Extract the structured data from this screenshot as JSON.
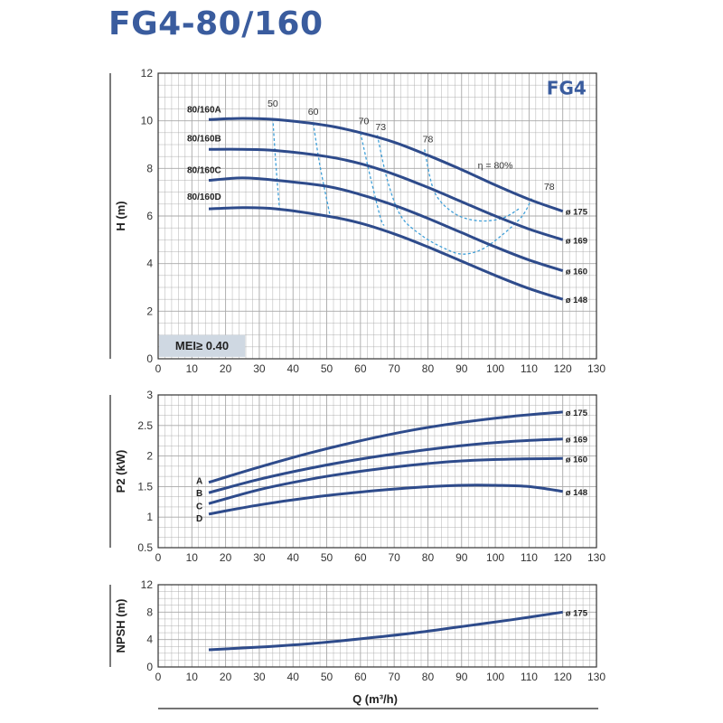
{
  "title": "FG4-80/160",
  "colors": {
    "title": "#3a5c9e",
    "curve": "#2e4b8b",
    "efficiency": "#3f9fd8",
    "grid": "#a8a8a8",
    "mei_bg": "#cfd8e2"
  },
  "x_axis": {
    "label": "Q (m³/h)",
    "ticks": [
      "0",
      "10",
      "20",
      "30",
      "40",
      "50",
      "60",
      "70",
      "80",
      "90",
      "100",
      "110",
      "120",
      "130"
    ]
  },
  "chart_data": [
    {
      "type": "line",
      "name": "head",
      "ylabel": "H (m)",
      "xlim": [
        0,
        130
      ],
      "ylim": [
        0,
        12
      ],
      "x_ticks": [
        "0",
        "10",
        "20",
        "30",
        "40",
        "50",
        "60",
        "70",
        "80",
        "90",
        "100",
        "110",
        "120",
        "130"
      ],
      "y_ticks": [
        "0",
        "2",
        "4",
        "6",
        "8",
        "10",
        "12"
      ],
      "badge": "FG4",
      "mei": "MEI≥ 0.40",
      "series": [
        {
          "name": "80/160A",
          "diameter": "ø 175",
          "points": [
            [
              15,
              10.05
            ],
            [
              25,
              10.1
            ],
            [
              35,
              10.05
            ],
            [
              50,
              9.8
            ],
            [
              60,
              9.5
            ],
            [
              70,
              9.1
            ],
            [
              80,
              8.55
            ],
            [
              90,
              7.95
            ],
            [
              100,
              7.3
            ],
            [
              110,
              6.7
            ],
            [
              120,
              6.2
            ]
          ]
        },
        {
          "name": "80/160B",
          "diameter": "ø 169",
          "points": [
            [
              15,
              8.8
            ],
            [
              25,
              8.8
            ],
            [
              35,
              8.75
            ],
            [
              50,
              8.5
            ],
            [
              60,
              8.2
            ],
            [
              70,
              7.75
            ],
            [
              80,
              7.2
            ],
            [
              90,
              6.6
            ],
            [
              100,
              6.0
            ],
            [
              110,
              5.45
            ],
            [
              120,
              5.0
            ]
          ]
        },
        {
          "name": "80/160C",
          "diameter": "ø 160",
          "points": [
            [
              15,
              7.5
            ],
            [
              25,
              7.6
            ],
            [
              35,
              7.5
            ],
            [
              50,
              7.25
            ],
            [
              60,
              6.9
            ],
            [
              70,
              6.45
            ],
            [
              80,
              5.9
            ],
            [
              90,
              5.3
            ],
            [
              100,
              4.7
            ],
            [
              110,
              4.15
            ],
            [
              120,
              3.7
            ]
          ]
        },
        {
          "name": "80/160D",
          "diameter": "ø 148",
          "points": [
            [
              15,
              6.3
            ],
            [
              25,
              6.35
            ],
            [
              35,
              6.3
            ],
            [
              50,
              6.0
            ],
            [
              60,
              5.7
            ],
            [
              70,
              5.25
            ],
            [
              80,
              4.7
            ],
            [
              90,
              4.1
            ],
            [
              100,
              3.5
            ],
            [
              110,
              2.95
            ],
            [
              120,
              2.5
            ]
          ]
        }
      ],
      "efficiency": [
        {
          "label": "50",
          "points": [
            [
              34,
              10.1
            ],
            [
              35,
              8.0
            ],
            [
              36,
              6.3
            ]
          ]
        },
        {
          "label": "60",
          "points": [
            [
              46,
              9.9
            ],
            [
              48,
              8.1
            ],
            [
              51,
              6.0
            ]
          ]
        },
        {
          "label": "70",
          "points": [
            [
              60,
              9.5
            ],
            [
              63,
              7.6
            ],
            [
              66,
              5.9
            ],
            [
              67,
              5.6
            ]
          ]
        },
        {
          "label": "73",
          "points": [
            [
              65,
              9.4
            ],
            [
              68,
              7.5
            ],
            [
              72,
              6.0
            ],
            [
              78,
              5.2
            ],
            [
              84,
              4.7
            ],
            [
              90,
              4.4
            ],
            [
              96,
              4.6
            ],
            [
              102,
              5.2
            ],
            [
              108,
              6.0
            ],
            [
              111,
              6.8
            ]
          ]
        },
        {
          "label": "78",
          "points": [
            [
              79,
              8.8
            ],
            [
              82,
              7.0
            ],
            [
              88,
              6.1
            ],
            [
              95,
              5.8
            ],
            [
              102,
              5.9
            ],
            [
              107,
              6.3
            ]
          ]
        },
        {
          "label": "η = 80%",
          "points": []
        },
        {
          "label": "78",
          "points": []
        }
      ]
    },
    {
      "type": "line",
      "name": "power",
      "ylabel": "P2 (kW)",
      "xlim": [
        0,
        130
      ],
      "ylim": [
        0.5,
        3
      ],
      "x_ticks": [
        "0",
        "10",
        "20",
        "30",
        "40",
        "50",
        "60",
        "70",
        "80",
        "90",
        "100",
        "110",
        "120",
        "130"
      ],
      "y_ticks": [
        "0.5",
        "1",
        "1.5",
        "2",
        "2.5",
        "3"
      ],
      "series": [
        {
          "name": "A",
          "diameter": "ø 175",
          "points": [
            [
              15,
              1.57
            ],
            [
              30,
              1.82
            ],
            [
              45,
              2.05
            ],
            [
              60,
              2.25
            ],
            [
              75,
              2.42
            ],
            [
              90,
              2.55
            ],
            [
              105,
              2.65
            ],
            [
              120,
              2.72
            ]
          ]
        },
        {
          "name": "B",
          "diameter": "ø 169",
          "points": [
            [
              15,
              1.4
            ],
            [
              30,
              1.62
            ],
            [
              45,
              1.8
            ],
            [
              60,
              1.95
            ],
            [
              75,
              2.07
            ],
            [
              90,
              2.17
            ],
            [
              105,
              2.24
            ],
            [
              120,
              2.28
            ]
          ]
        },
        {
          "name": "C",
          "diameter": "ø 160",
          "points": [
            [
              15,
              1.22
            ],
            [
              30,
              1.45
            ],
            [
              45,
              1.62
            ],
            [
              60,
              1.75
            ],
            [
              75,
              1.85
            ],
            [
              90,
              1.92
            ],
            [
              105,
              1.95
            ],
            [
              120,
              1.96
            ]
          ]
        },
        {
          "name": "D",
          "diameter": "ø 148",
          "points": [
            [
              15,
              1.05
            ],
            [
              30,
              1.2
            ],
            [
              45,
              1.32
            ],
            [
              60,
              1.41
            ],
            [
              75,
              1.48
            ],
            [
              90,
              1.52
            ],
            [
              100,
              1.52
            ],
            [
              110,
              1.5
            ],
            [
              120,
              1.42
            ]
          ]
        }
      ]
    },
    {
      "type": "line",
      "name": "npsh",
      "ylabel": "NPSH (m)",
      "xlim": [
        0,
        130
      ],
      "ylim": [
        0,
        12
      ],
      "x_ticks": [
        "0",
        "10",
        "20",
        "30",
        "40",
        "50",
        "60",
        "70",
        "80",
        "90",
        "100",
        "110",
        "120",
        "130"
      ],
      "y_ticks": [
        "0",
        "4",
        "8",
        "12"
      ],
      "series": [
        {
          "name": "npsh",
          "diameter": "ø 175",
          "points": [
            [
              15,
              2.5
            ],
            [
              30,
              2.9
            ],
            [
              45,
              3.4
            ],
            [
              60,
              4.1
            ],
            [
              75,
              4.9
            ],
            [
              90,
              5.9
            ],
            [
              105,
              6.9
            ],
            [
              120,
              8.0
            ]
          ]
        }
      ]
    }
  ]
}
